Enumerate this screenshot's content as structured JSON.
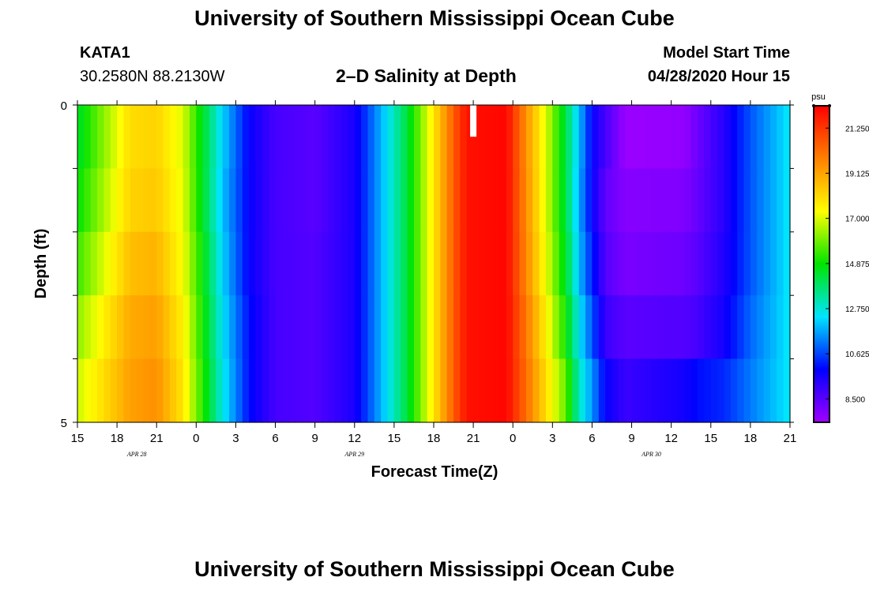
{
  "header": {
    "title_top": "University of Southern Mississippi Ocean Cube",
    "station": "KATA1",
    "coords": "30.2580N 88.2130W",
    "subtitle": "2–D Salinity at Depth",
    "start_label": "Model Start Time",
    "start_value": "04/28/2020 Hour 15",
    "title_bottom": "University of Southern Mississippi Ocean Cube"
  },
  "chart_data": {
    "type": "heatmap",
    "title": "2–D Salinity at Depth",
    "xlabel": "Forecast Time(Z)",
    "ylabel": "Depth (ft)",
    "x_tick_labels": [
      "15",
      "18",
      "21",
      "0",
      "3",
      "6",
      "9",
      "12",
      "15",
      "18",
      "21",
      "0",
      "3",
      "6",
      "9",
      "12",
      "15",
      "18",
      "21"
    ],
    "date_labels": [
      {
        "text": "APR  28",
        "tick_index": 1.5
      },
      {
        "text": "APR  29",
        "tick_index": 7
      },
      {
        "text": "APR  30",
        "tick_index": 14.5
      }
    ],
    "y_tick_labels": [
      "0",
      "5"
    ],
    "ylim": [
      0,
      5
    ],
    "x_hours": [
      0,
      54
    ],
    "depth_rows": 5,
    "colorbar": {
      "unit": "psu",
      "min": 7.4,
      "max": 22.3,
      "tick_labels": [
        "21.250",
        "19.125",
        "17.000",
        "14.875",
        "12.750",
        "10.625",
        "8.500"
      ],
      "tick_values": [
        21.25,
        19.125,
        17.0,
        14.875,
        12.75,
        10.625,
        8.5
      ],
      "colors": [
        "#a000ff",
        "#0000ff",
        "#00e4ff",
        "#00e400",
        "#ffff00",
        "#ff8000",
        "#ff0000"
      ]
    },
    "salinity_keyframes": [
      [
        0,
        14.4,
        14.8,
        15.4,
        16.2,
        16.8
      ],
      [
        4,
        18.0,
        18.2,
        18.6,
        19.0,
        19.2
      ],
      [
        6,
        18.2,
        18.4,
        18.8,
        19.2,
        19.5
      ],
      [
        8,
        17.0,
        17.1,
        17.3,
        17.6,
        17.8
      ],
      [
        9.5,
        14.5,
        14.5,
        14.8,
        15.0,
        15.2
      ],
      [
        11,
        12.2,
        12.0,
        12.2,
        12.4,
        12.6
      ],
      [
        13,
        9.8,
        9.8,
        9.8,
        10.0,
        10.0
      ],
      [
        15,
        8.8,
        8.8,
        8.8,
        8.8,
        8.8
      ],
      [
        18,
        8.5,
        8.5,
        8.6,
        8.6,
        8.6
      ],
      [
        21,
        9.5,
        9.5,
        9.5,
        9.5,
        9.5
      ],
      [
        23,
        11.8,
        11.8,
        11.8,
        11.8,
        11.8
      ],
      [
        25,
        14.3,
        14.3,
        14.3,
        14.3,
        14.3
      ],
      [
        27,
        17.8,
        17.8,
        17.8,
        17.8,
        17.8
      ],
      [
        28.5,
        20.5,
        20.5,
        20.5,
        20.5,
        20.5
      ],
      [
        29.5,
        22.0,
        22.0,
        22.0,
        22.0,
        22.0
      ],
      [
        32.5,
        22.2,
        22.2,
        22.2,
        22.2,
        22.2
      ],
      [
        34,
        19.5,
        19.6,
        19.7,
        20.0,
        20.2
      ],
      [
        35.5,
        17.0,
        17.0,
        17.2,
        17.6,
        18.0
      ],
      [
        37,
        14.2,
        14.2,
        14.5,
        15.0,
        15.8
      ],
      [
        38,
        12.0,
        11.8,
        12.0,
        12.5,
        13.0
      ],
      [
        39,
        9.8,
        9.8,
        10.2,
        10.8,
        11.5
      ],
      [
        40,
        8.8,
        8.4,
        8.6,
        9.0,
        9.8
      ],
      [
        41.5,
        7.5,
        7.8,
        8.0,
        8.5,
        9.0
      ],
      [
        46,
        7.6,
        7.9,
        8.2,
        8.6,
        9.6
      ],
      [
        47,
        8.2,
        8.3,
        8.5,
        8.8,
        10.0
      ],
      [
        49,
        9.3,
        9.3,
        9.4,
        9.6,
        10.3
      ],
      [
        51,
        10.8,
        10.8,
        10.8,
        11.0,
        11.2
      ],
      [
        54,
        12.5,
        12.5,
        12.5,
        12.5,
        12.5
      ]
    ],
    "marker": {
      "hour": 30,
      "depth_from": 0,
      "depth_to": 0.5,
      "color": "#ffffff"
    }
  }
}
